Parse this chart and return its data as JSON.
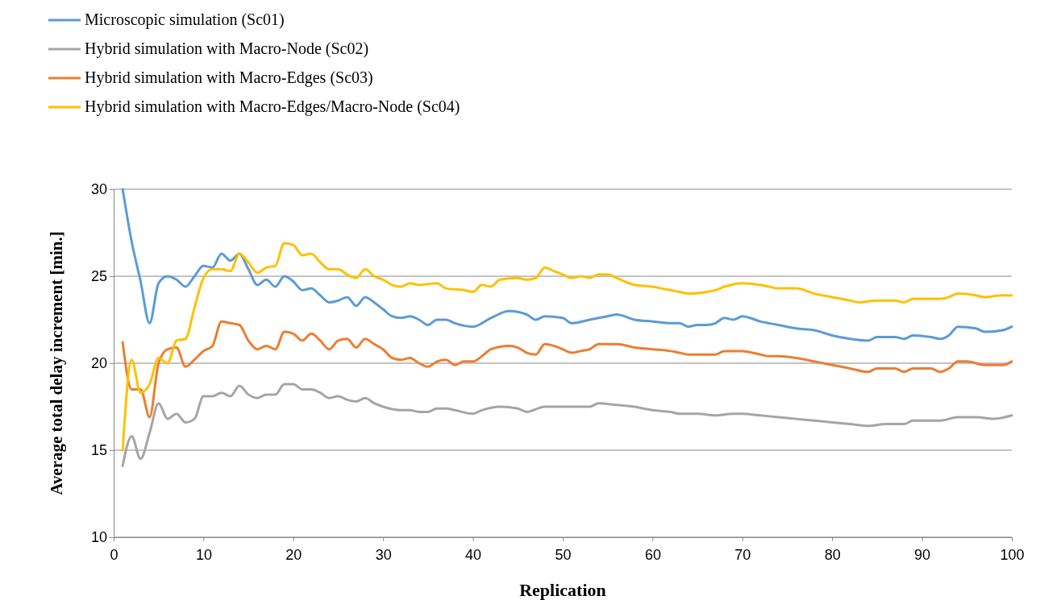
{
  "chart_data": {
    "type": "line",
    "xlabel": "Replication",
    "ylabel": "Average total delay increment  [min.]",
    "xlim": [
      0,
      100
    ],
    "xticks": [
      0,
      10,
      20,
      30,
      40,
      50,
      60,
      70,
      80,
      90,
      100
    ],
    "ylim": [
      10,
      30
    ],
    "yticks": [
      10,
      15,
      20,
      25,
      30
    ],
    "grid": "y",
    "legend": "top left",
    "marker": "none",
    "line_style": "solid",
    "series": [
      {
        "name": "Microscopic simulation (Sc01)",
        "color": "#5b9bd5",
        "x": [
          1,
          2,
          3,
          4,
          5,
          6,
          7,
          8,
          9,
          10,
          11,
          12,
          13,
          14,
          15,
          16,
          17,
          18,
          19,
          20,
          21,
          22,
          23,
          24,
          25,
          26,
          27,
          28,
          29,
          30,
          31,
          32,
          33,
          34,
          35,
          36,
          37,
          38,
          40,
          42,
          44,
          46,
          47,
          48,
          50,
          51,
          53,
          55,
          56,
          58,
          60,
          62,
          63,
          64,
          65,
          66,
          67,
          68,
          69,
          70,
          72,
          74,
          76,
          78,
          80,
          82,
          84,
          85,
          87,
          88,
          89,
          91,
          92,
          93,
          94,
          96,
          97,
          99,
          100
        ],
        "values": [
          30,
          27,
          24.7,
          22.3,
          24.6,
          25,
          24.8,
          24.4,
          25,
          25.6,
          25.5,
          26.3,
          25.9,
          26.3,
          25.4,
          24.5,
          24.8,
          24.4,
          25,
          24.7,
          24.2,
          24.3,
          23.9,
          23.5,
          23.6,
          23.8,
          23.3,
          23.8,
          23.5,
          23.1,
          22.7,
          22.6,
          22.7,
          22.5,
          22.2,
          22.5,
          22.5,
          22.3,
          22.1,
          22.6,
          23,
          22.8,
          22.5,
          22.7,
          22.6,
          22.3,
          22.5,
          22.7,
          22.8,
          22.5,
          22.4,
          22.3,
          22.3,
          22.1,
          22.2,
          22.2,
          22.3,
          22.6,
          22.5,
          22.7,
          22.4,
          22.2,
          22,
          21.9,
          21.6,
          21.4,
          21.3,
          21.5,
          21.5,
          21.4,
          21.6,
          21.5,
          21.4,
          21.6,
          22.1,
          22,
          21.8,
          21.9,
          22.1
        ]
      },
      {
        "name": "Hybrid simulation with Macro-Node (Sc02)",
        "color": "#a5a5a5",
        "x": [
          1,
          2,
          3,
          4,
          5,
          6,
          7,
          8,
          9,
          10,
          11,
          12,
          13,
          14,
          15,
          16,
          17,
          18,
          19,
          20,
          21,
          22,
          23,
          24,
          25,
          26,
          27,
          28,
          29,
          30,
          32,
          33,
          34,
          35,
          36,
          37,
          38,
          40,
          41,
          43,
          45,
          46,
          48,
          50,
          52,
          53,
          54,
          56,
          58,
          59,
          60,
          62,
          63,
          65,
          67,
          69,
          70,
          72,
          74,
          76,
          78,
          80,
          82,
          84,
          86,
          88,
          89,
          91,
          92,
          94,
          96,
          98,
          100
        ],
        "values": [
          14.1,
          15.8,
          14.5,
          16,
          17.7,
          16.8,
          17.1,
          16.6,
          16.8,
          18.1,
          18.1,
          18.3,
          18.1,
          18.7,
          18.2,
          18,
          18.2,
          18.2,
          18.8,
          18.8,
          18.5,
          18.5,
          18.3,
          18,
          18.1,
          17.9,
          17.8,
          18,
          17.7,
          17.5,
          17.3,
          17.3,
          17.2,
          17.2,
          17.4,
          17.4,
          17.3,
          17.1,
          17.3,
          17.5,
          17.4,
          17.2,
          17.5,
          17.5,
          17.5,
          17.5,
          17.7,
          17.6,
          17.5,
          17.4,
          17.3,
          17.2,
          17.1,
          17.1,
          17,
          17.1,
          17.1,
          17,
          16.9,
          16.8,
          16.7,
          16.6,
          16.5,
          16.4,
          16.5,
          16.5,
          16.7,
          16.7,
          16.7,
          16.9,
          16.9,
          16.8,
          17
        ]
      },
      {
        "name": "Hybrid simulation with Macro-Edges (Sc03)",
        "color": "#ed7d31",
        "x": [
          1,
          2,
          3,
          4,
          5,
          6,
          7,
          8,
          9,
          10,
          11,
          12,
          13,
          14,
          15,
          16,
          17,
          18,
          19,
          20,
          21,
          22,
          23,
          24,
          25,
          26,
          27,
          28,
          29,
          30,
          31,
          32,
          33,
          34,
          35,
          36,
          37,
          38,
          39,
          40,
          41,
          42,
          44,
          45,
          46,
          47,
          48,
          49,
          50,
          51,
          52,
          53,
          54,
          56,
          58,
          60,
          62,
          63,
          64,
          66,
          67,
          68,
          70,
          72,
          73,
          74,
          76,
          78,
          80,
          82,
          84,
          85,
          87,
          88,
          89,
          91,
          92,
          93,
          94,
          95,
          97,
          99,
          100
        ],
        "values": [
          21.2,
          18.5,
          18.5,
          16.9,
          20,
          20.8,
          20.9,
          19.8,
          20.2,
          20.7,
          21,
          22.4,
          22.3,
          22.2,
          21.3,
          20.8,
          21,
          20.8,
          21.8,
          21.7,
          21.3,
          21.7,
          21.3,
          20.8,
          21.3,
          21.4,
          20.9,
          21.4,
          21.1,
          20.8,
          20.3,
          20.2,
          20.3,
          20,
          19.8,
          20.1,
          20.2,
          19.9,
          20.1,
          20.1,
          20.4,
          20.8,
          21,
          20.9,
          20.6,
          20.5,
          21.1,
          21,
          20.8,
          20.6,
          20.7,
          20.8,
          21.1,
          21.1,
          20.9,
          20.8,
          20.7,
          20.6,
          20.5,
          20.5,
          20.5,
          20.7,
          20.7,
          20.5,
          20.4,
          20.4,
          20.3,
          20.1,
          19.9,
          19.7,
          19.5,
          19.7,
          19.7,
          19.5,
          19.7,
          19.7,
          19.5,
          19.7,
          20.1,
          20.1,
          19.9,
          19.9,
          20.1
        ]
      },
      {
        "name": "Hybrid simulation with Macro-Edges/Macro-Node (Sc04)",
        "color": "#ffc000",
        "x": [
          1,
          2,
          3,
          4,
          5,
          6,
          7,
          8,
          9,
          10,
          11,
          12,
          13,
          14,
          15,
          16,
          17,
          18,
          19,
          20,
          21,
          22,
          23,
          24,
          25,
          26,
          27,
          28,
          29,
          30,
          31,
          32,
          33,
          34,
          36,
          37,
          39,
          40,
          41,
          42,
          43,
          45,
          46,
          47,
          48,
          49,
          50,
          51,
          52,
          53,
          54,
          55,
          56,
          58,
          60,
          61,
          62,
          63,
          64,
          66,
          67,
          68,
          70,
          72,
          73,
          74,
          76,
          78,
          80,
          82,
          83,
          85,
          87,
          88,
          89,
          92,
          93,
          94,
          96,
          97,
          99,
          100
        ],
        "values": [
          15,
          20.2,
          18.3,
          18.8,
          20.3,
          20,
          21.3,
          21.4,
          23.2,
          24.9,
          25.4,
          25.4,
          25.3,
          26.3,
          25.8,
          25.2,
          25.5,
          25.6,
          26.9,
          26.8,
          26.2,
          26.3,
          25.8,
          25.4,
          25.4,
          25.1,
          24.9,
          25.4,
          25,
          24.8,
          24.5,
          24.4,
          24.6,
          24.5,
          24.6,
          24.3,
          24.2,
          24.1,
          24.5,
          24.4,
          24.8,
          24.9,
          24.8,
          24.9,
          25.5,
          25.3,
          25.1,
          24.9,
          25,
          24.9,
          25.1,
          25.1,
          24.9,
          24.5,
          24.4,
          24.3,
          24.2,
          24.1,
          24,
          24.1,
          24.2,
          24.4,
          24.6,
          24.5,
          24.4,
          24.3,
          24.3,
          24,
          23.8,
          23.6,
          23.5,
          23.6,
          23.6,
          23.5,
          23.7,
          23.7,
          23.8,
          24,
          23.9,
          23.8,
          23.9,
          23.9
        ]
      }
    ]
  }
}
